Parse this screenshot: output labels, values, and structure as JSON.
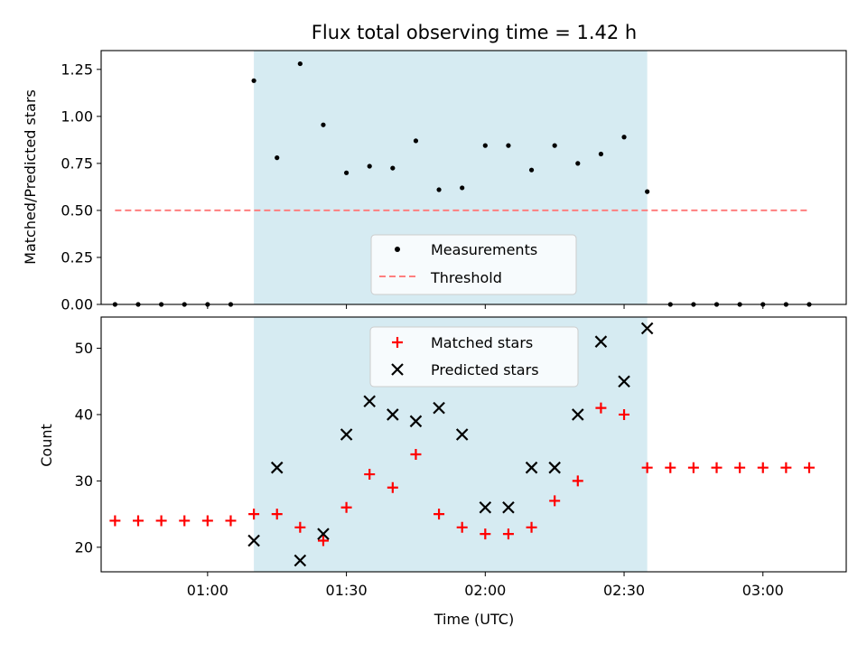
{
  "chart_data": [
    {
      "type": "scatter",
      "title": "Flux total observing time = 1.42 h",
      "xlabel": "",
      "ylabel": "Matched/Predicted stars",
      "ylim": [
        0,
        1.35
      ],
      "yticks": [
        "0.00",
        "0.25",
        "0.50",
        "0.75",
        "1.00",
        "1.25"
      ],
      "ytick_values": [
        0,
        0.25,
        0.5,
        0.75,
        1.0,
        1.25
      ],
      "xlim": [
        "00:37",
        "03:18"
      ],
      "xticks": [
        "01:00",
        "01:30",
        "02:00",
        "02:30",
        "03:00"
      ],
      "shaded_region": {
        "start": "01:10",
        "end": "02:35",
        "color": "#add8e6"
      },
      "legend_position": "lower center",
      "series": [
        {
          "name": "Measurements",
          "marker": "dot",
          "color": "#000000",
          "x": [
            "00:40",
            "00:45",
            "00:50",
            "00:55",
            "01:00",
            "01:05",
            "01:10",
            "01:15",
            "01:20",
            "01:25",
            "01:30",
            "01:35",
            "01:40",
            "01:45",
            "01:50",
            "01:55",
            "02:00",
            "02:05",
            "02:10",
            "02:15",
            "02:20",
            "02:25",
            "02:30",
            "02:35",
            "02:40",
            "02:45",
            "02:50",
            "02:55",
            "03:00",
            "03:05",
            "03:10"
          ],
          "y": [
            0,
            0,
            0,
            0,
            0,
            0,
            1.19,
            0.78,
            1.28,
            0.955,
            0.7,
            0.735,
            0.725,
            0.87,
            0.61,
            0.62,
            0.845,
            0.845,
            0.715,
            0.845,
            0.75,
            0.8,
            0.89,
            0.6,
            0,
            0,
            0,
            0,
            0,
            0,
            0
          ]
        },
        {
          "name": "Threshold",
          "marker": "dashed-line",
          "color": "#ff7f7f",
          "x": [
            "00:40",
            "03:10"
          ],
          "y": [
            0.5,
            0.5
          ]
        }
      ]
    },
    {
      "type": "scatter",
      "title": "",
      "xlabel": "Time (UTC)",
      "ylabel": "Count",
      "ylim": [
        16.3,
        54.7
      ],
      "yticks": [
        "20",
        "30",
        "40",
        "50"
      ],
      "ytick_values": [
        20,
        30,
        40,
        50
      ],
      "xlim": [
        "00:37",
        "03:18"
      ],
      "xticks": [
        "01:00",
        "01:30",
        "02:00",
        "02:30",
        "03:00"
      ],
      "shaded_region": {
        "start": "01:10",
        "end": "02:35",
        "color": "#add8e6"
      },
      "legend_position": "upper center",
      "series": [
        {
          "name": "Matched stars",
          "marker": "plus",
          "color": "#ff0000",
          "x": [
            "00:40",
            "00:45",
            "00:50",
            "00:55",
            "01:00",
            "01:05",
            "01:10",
            "01:15",
            "01:20",
            "01:25",
            "01:30",
            "01:35",
            "01:40",
            "01:45",
            "01:50",
            "01:55",
            "02:00",
            "02:05",
            "02:10",
            "02:15",
            "02:20",
            "02:25",
            "02:30",
            "02:35",
            "02:40",
            "02:45",
            "02:50",
            "02:55",
            "03:00",
            "03:05",
            "03:10"
          ],
          "y": [
            24,
            24,
            24,
            24,
            24,
            24,
            25,
            25,
            23,
            21,
            26,
            31,
            29,
            34,
            25,
            23,
            22,
            22,
            23,
            27,
            30,
            41,
            40,
            32,
            32,
            32,
            32,
            32,
            32,
            32,
            32
          ]
        },
        {
          "name": "Predicted stars",
          "marker": "x",
          "color": "#000000",
          "x": [
            "01:10",
            "01:15",
            "01:20",
            "01:25",
            "01:30",
            "01:35",
            "01:40",
            "01:45",
            "01:50",
            "01:55",
            "02:00",
            "02:05",
            "02:10",
            "02:15",
            "02:20",
            "02:25",
            "02:30",
            "02:35"
          ],
          "y": [
            21,
            32,
            18,
            22,
            37,
            42,
            40,
            39,
            41,
            37,
            26,
            26,
            32,
            32,
            40,
            51,
            45,
            53
          ]
        }
      ]
    }
  ]
}
